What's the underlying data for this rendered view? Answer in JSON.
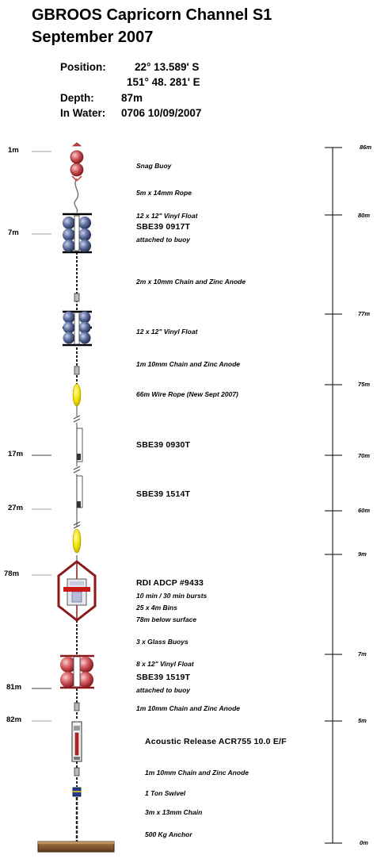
{
  "title": {
    "line1": "GBROOS Capricorn Channel S1",
    "line2": "September 2007"
  },
  "header": {
    "position_label": "Position:",
    "position_lat": "22° 13.589' S",
    "position_lon": "151° 48. 281' E",
    "depth_label": "Depth:",
    "depth_value": "87m",
    "inwater_label": "In Water:",
    "inwater_value": "0706 10/09/2007"
  },
  "depth_markers": [
    "1m",
    "7m",
    "17m",
    "27m",
    "78m",
    "81m",
    "82m"
  ],
  "scale_labels": [
    "86m",
    "80m",
    "77m",
    "75m",
    "70m",
    "60m",
    "9m",
    "7m",
    "5m",
    "0m"
  ],
  "components": {
    "snag_buoy": "Snag Buoy",
    "rope_5m": "5m x 14mm Rope",
    "vinyl_float_1": "12 x 12\" Vinyl Float",
    "sbe39_0917": "SBE39 0917T",
    "attached_1": "attached to buoy",
    "chain_2m": "2m x 10mm Chain and Zinc Anode",
    "vinyl_float_2": "12 x 12\" Vinyl Float",
    "chain_1m_a": "1m 10mm Chain and Zinc Anode",
    "wire_rope": "66m Wire Rope (New Sept 2007)",
    "sbe39_0930": "SBE39 0930T",
    "sbe39_1514": "SBE39 1514T",
    "adcp": "RDI ADCP #9433",
    "adcp_bursts": "10 min / 30 min bursts",
    "adcp_bins": "25 x 4m Bins",
    "adcp_depth": "78m below surface",
    "glass_buoys": "3 x Glass Buoys",
    "vinyl_float_3": "8 x 12\" Vinyl Float",
    "sbe39_1519": "SBE39 1519T",
    "attached_2": "attached to buoy",
    "chain_1m_b": "1m 10mm Chain and Zinc Anode",
    "release": "Acoustic Release ACR755 10.0 E/F",
    "chain_1m_c": "1m 10mm Chain and Zinc Anode",
    "swivel": "1 Ton Swivel",
    "chain_3m": "3m x 13mm Chain",
    "anchor": "500 Kg Anchor"
  }
}
